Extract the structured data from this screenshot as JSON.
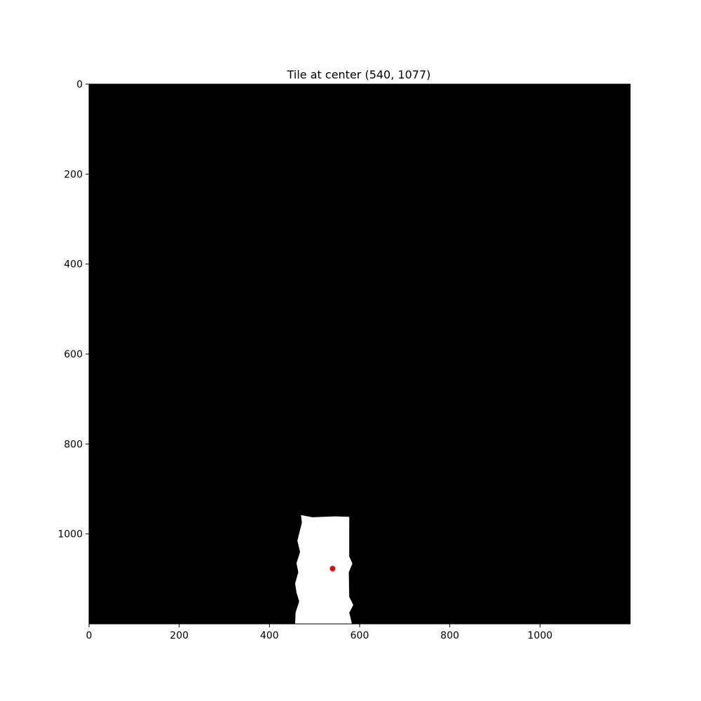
{
  "chart_data": {
    "type": "image",
    "title": "Tile at center (540, 1077)",
    "xlabel": "",
    "ylabel": "",
    "xlim": [
      0,
      1200
    ],
    "ylim": [
      1200,
      0
    ],
    "x_ticks": [
      0,
      200,
      400,
      600,
      800,
      1000
    ],
    "y_ticks": [
      0,
      200,
      400,
      600,
      800,
      1000
    ],
    "background_color": "#000000",
    "mask_color": "#ffffff",
    "mask_outline": [
      [
        470,
        958
      ],
      [
        495,
        963
      ],
      [
        520,
        962
      ],
      [
        545,
        961
      ],
      [
        577,
        962
      ],
      [
        577,
        1050
      ],
      [
        584,
        1066
      ],
      [
        576,
        1085
      ],
      [
        577,
        1140
      ],
      [
        586,
        1158
      ],
      [
        577,
        1175
      ],
      [
        583,
        1200
      ],
      [
        457,
        1200
      ],
      [
        458,
        1175
      ],
      [
        466,
        1150
      ],
      [
        460,
        1130
      ],
      [
        457,
        1110
      ],
      [
        464,
        1085
      ],
      [
        460,
        1065
      ],
      [
        468,
        1040
      ],
      [
        462,
        1015
      ],
      [
        472,
        975
      ]
    ],
    "center_point": {
      "x": 540,
      "y": 1077,
      "color": "#ff0000"
    },
    "grid": false
  }
}
